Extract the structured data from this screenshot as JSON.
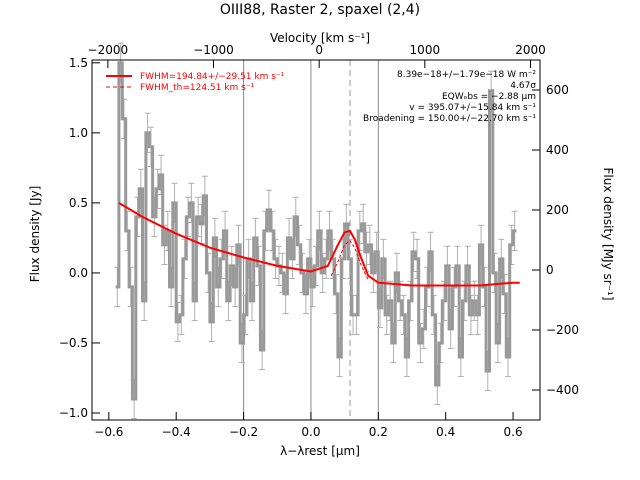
{
  "chart_data": {
    "type": "line",
    "title": "OIII88, Raster 2, spaxel (2,4)",
    "xlabel": "λ−λrest [μm]",
    "ylabel": "Flux density [Jy]",
    "top_xlabel": "Velocity [km s⁻¹]",
    "right_ylabel": "Flux density [MJy sr⁻¹]",
    "xlim": [
      -0.65,
      0.68
    ],
    "ylim": [
      -1.05,
      1.52
    ],
    "right_ylim": [
      -500,
      700
    ],
    "top_xlim": [
      -2150,
      2090
    ],
    "x_ticks": [
      -0.6,
      -0.4,
      -0.2,
      0.0,
      0.2,
      0.4,
      0.6
    ],
    "x_tick_labels": [
      "−0.6",
      "−0.4",
      "−0.2",
      "0.0",
      "0.2",
      "0.4",
      "0.6"
    ],
    "y_ticks": [
      -1.0,
      -0.5,
      0.0,
      0.5,
      1.0,
      1.5
    ],
    "y_tick_labels": [
      "−1.0",
      "−0.5",
      "0.0",
      "0.5",
      "1.0",
      "1.5"
    ],
    "right_ticks": [
      -400,
      -200,
      0,
      200,
      400,
      600
    ],
    "right_tick_labels": [
      "−400",
      "−200",
      "0",
      "200",
      "400",
      "600"
    ],
    "top_ticks": [
      -2000,
      -1000,
      0,
      1000,
      2000
    ],
    "top_tick_labels": [
      "−2000",
      "−1000",
      "0",
      "1000",
      "2000"
    ],
    "vertical_lines": [
      -0.2,
      0.0,
      0.2
    ],
    "dashed_line": 0.116,
    "legend": {
      "placement": "top-left",
      "entries": [
        {
          "label": "FWHM=194.84+/−29.51 km s⁻¹",
          "color": "#ff0000",
          "style": "solid"
        },
        {
          "label": "FWHM_th=124.51 km s⁻¹",
          "color": "#ff0000",
          "style": "dashed"
        }
      ]
    },
    "annotations": [
      "8.39e−18+/−1.79e−18 W m⁻²",
      "4.67σ",
      "EQWₒbs = −2.88 μm",
      "v = 395.07+/−15.84 km s⁻¹",
      "Broadening = 150.00+/−22.70 km s⁻¹"
    ],
    "series": [
      {
        "style": "data",
        "color": "#999999",
        "x": [
          -0.575,
          -0.565,
          -0.555,
          -0.545,
          -0.535,
          -0.525,
          -0.515,
          -0.505,
          -0.495,
          -0.485,
          -0.475,
          -0.465,
          -0.455,
          -0.445,
          -0.435,
          -0.425,
          -0.415,
          -0.405,
          -0.395,
          -0.385,
          -0.375,
          -0.365,
          -0.355,
          -0.345,
          -0.335,
          -0.325,
          -0.315,
          -0.305,
          -0.295,
          -0.285,
          -0.275,
          -0.265,
          -0.255,
          -0.245,
          -0.235,
          -0.225,
          -0.215,
          -0.205,
          -0.195,
          -0.185,
          -0.175,
          -0.165,
          -0.155,
          -0.145,
          -0.135,
          -0.125,
          -0.115,
          -0.105,
          -0.095,
          -0.085,
          -0.075,
          -0.065,
          -0.055,
          -0.045,
          -0.035,
          -0.025,
          -0.015,
          -0.005,
          0.005,
          0.015,
          0.025,
          0.035,
          0.045,
          0.055,
          0.065,
          0.075,
          0.085,
          0.095,
          0.105,
          0.115,
          0.125,
          0.135,
          0.145,
          0.155,
          0.165,
          0.175,
          0.185,
          0.195,
          0.205,
          0.215,
          0.225,
          0.235,
          0.245,
          0.255,
          0.265,
          0.275,
          0.285,
          0.295,
          0.305,
          0.315,
          0.325,
          0.335,
          0.345,
          0.355,
          0.365,
          0.375,
          0.385,
          0.395,
          0.405,
          0.415,
          0.425,
          0.435,
          0.445,
          0.455,
          0.465,
          0.475,
          0.485,
          0.495,
          0.505,
          0.515,
          0.525,
          0.535,
          0.545,
          0.555,
          0.565,
          0.575,
          0.585,
          0.595,
          0.605
        ],
        "y": [
          -0.1,
          1.5,
          1.1,
          0.3,
          -0.1,
          -0.9,
          0.4,
          0.6,
          -0.2,
          1.0,
          0.9,
          0.4,
          0.6,
          0.7,
          0.2,
          0.3,
          -0.1,
          0.5,
          -0.35,
          -0.3,
          0.1,
          0.4,
          0.5,
          -0.2,
          0.4,
          0.35,
          0.55,
          0.0,
          -0.35,
          0.25,
          -0.1,
          0.1,
          0.3,
          -0.2,
          0.05,
          -0.1,
          0.2,
          -0.5,
          -0.3,
          0.1,
          -0.2,
          0.25,
          0.05,
          -0.55,
          0.3,
          0.45,
          0.3,
          0.1,
          0.05,
          0.0,
          -0.15,
          0.25,
          0.1,
          0.4,
          0.2,
          0.0,
          -0.15,
          0.1,
          -0.1,
          0.05,
          0.3,
          0.0,
          0.1,
          0.3,
          0.1,
          -0.15,
          -0.6,
          0.1,
          0.35,
          0.1,
          -0.3,
          -0.3,
          0.3,
          0.35,
          0.15,
          0.2,
          0.0,
          0.15,
          -0.25,
          0.1,
          -0.3,
          -0.2,
          -0.5,
          0.0,
          -0.2,
          -0.3,
          -0.6,
          -0.2,
          0.15,
          0.1,
          -0.5,
          -0.4,
          -0.1,
          0.15,
          -0.3,
          -0.8,
          -0.5,
          -0.2,
          0.05,
          -0.4,
          -0.1,
          0.05,
          -0.6,
          -0.2,
          0.05,
          -0.3,
          -0.2,
          -0.3,
          0.2,
          -0.1,
          -0.7,
          1.3,
          0.0,
          -0.5,
          0.1,
          -0.15,
          -0.6,
          0.2,
          0.3
        ],
        "err": 0.14
      },
      {
        "style": "fit",
        "color": "#ff0000",
        "x": [
          -0.57,
          -0.5,
          -0.4,
          -0.3,
          -0.2,
          -0.1,
          0.0,
          0.05,
          0.08,
          0.1,
          0.116,
          0.13,
          0.15,
          0.17,
          0.2,
          0.3,
          0.4,
          0.5,
          0.6,
          0.62
        ],
        "y": [
          0.5,
          0.4,
          0.28,
          0.18,
          0.11,
          0.05,
          0.01,
          0.05,
          0.2,
          0.29,
          0.3,
          0.24,
          0.1,
          -0.02,
          -0.07,
          -0.09,
          -0.09,
          -0.09,
          -0.07,
          -0.07
        ]
      },
      {
        "style": "thermal",
        "color": "#ff0000",
        "x": [
          0.06,
          0.08,
          0.1,
          0.116,
          0.13,
          0.15,
          0.17
        ],
        "y": [
          -0.02,
          0.08,
          0.2,
          0.23,
          0.18,
          0.05,
          -0.05
        ]
      }
    ]
  }
}
